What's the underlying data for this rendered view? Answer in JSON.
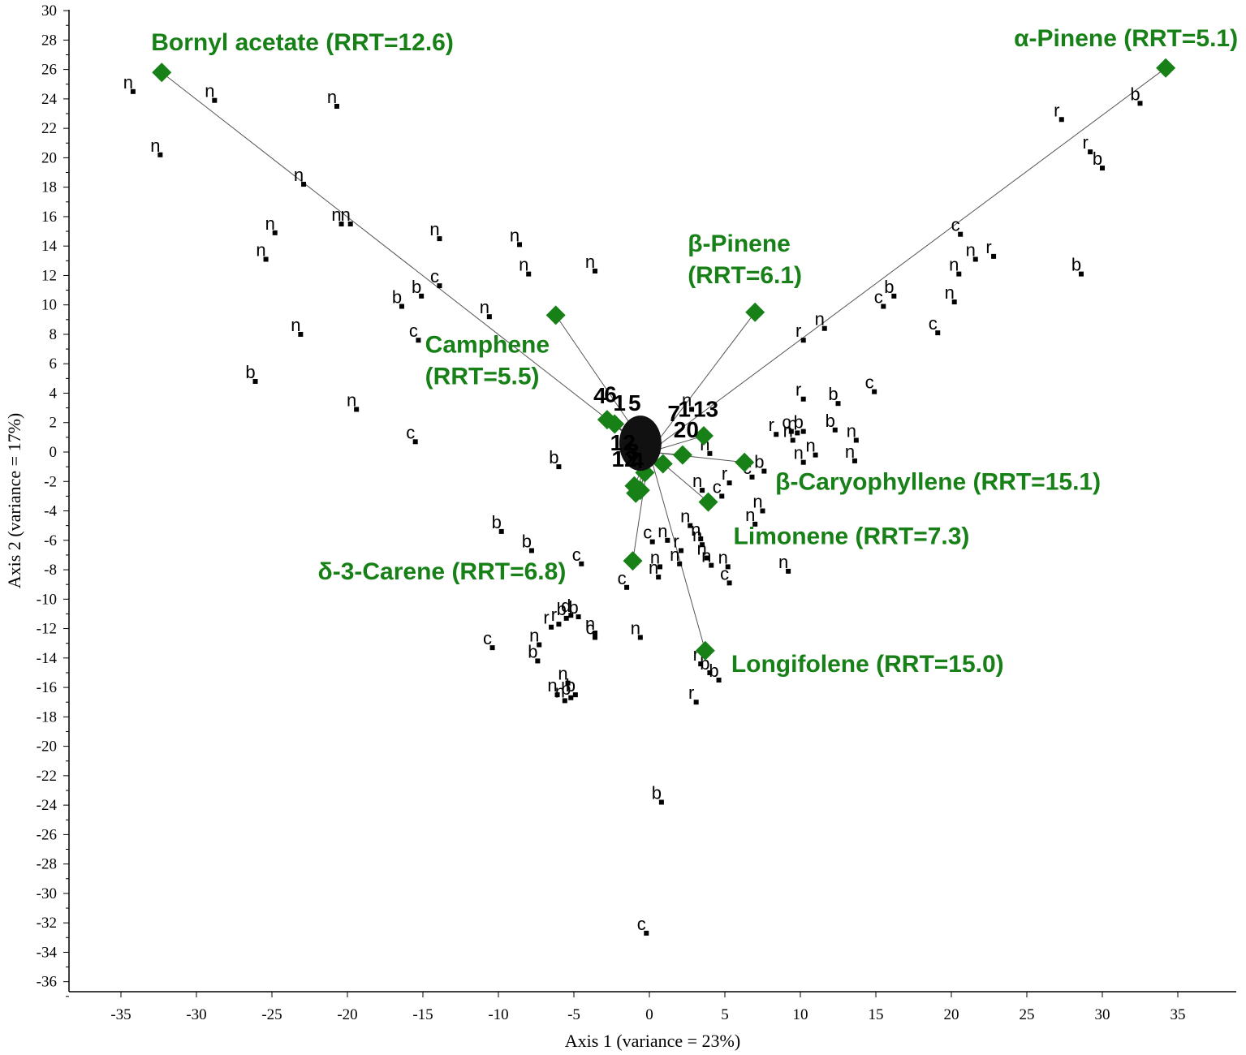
{
  "chart_data": {
    "type": "scatter",
    "title": "",
    "xlabel": "Axis 1 (variance = 23%)",
    "ylabel": "Axis 2 (variance = 17%)",
    "xlim": [
      -38,
      39
    ],
    "ylim": [
      -37,
      30
    ],
    "xticks": [
      -35,
      -30,
      -25,
      -20,
      -15,
      -10,
      -5,
      0,
      5,
      10,
      15,
      20,
      25,
      30,
      35
    ],
    "yticks": [
      30,
      28,
      26,
      24,
      22,
      20,
      18,
      16,
      14,
      12,
      10,
      8,
      6,
      4,
      2,
      0,
      -2,
      -4,
      -6,
      -8,
      -10,
      -12,
      -14,
      -16,
      -18,
      -20,
      -22,
      -24,
      -26,
      -28,
      -30,
      -32,
      -34,
      -36
    ],
    "grid": false,
    "colors": {
      "loading": "#178017",
      "points": "#000000"
    },
    "loadings": [
      {
        "name": "Bornyl acetate (RRT=12.6)",
        "x": -32.3,
        "y": 25.8,
        "label_lines": [
          "Bornyl acetate (RRT=12.6)"
        ]
      },
      {
        "name": "α-Pinene (RRT=5.1)",
        "x": 34.2,
        "y": 26.1,
        "label_lines": [
          "α-Pinene (RRT=5.1)"
        ]
      },
      {
        "name": "β-Pinene (RRT=6.1)",
        "x": 7.0,
        "y": 9.5,
        "label_lines": [
          "β-Pinene",
          "(RRT=6.1)"
        ]
      },
      {
        "name": "Camphene (RRT=5.5)",
        "x": -6.2,
        "y": 9.3,
        "label_lines": [
          "Camphene",
          "(RRT=5.5)"
        ]
      },
      {
        "name": "β-Caryophyllene (RRT=15.1)",
        "x": 6.3,
        "y": -0.7,
        "label_lines": [
          "β-Caryophyllene (RRT=15.1)"
        ]
      },
      {
        "name": "Limonene (RRT=7.3)",
        "x": 3.9,
        "y": -3.4,
        "label_lines": [
          "Limonene (RRT=7.3)"
        ]
      },
      {
        "name": "δ-3-Carene (RRT=6.8)",
        "x": -1.1,
        "y": -7.4,
        "label_lines": [
          "δ-3-Carene (RRT=6.8)"
        ]
      },
      {
        "name": "Longifolene (RRT=15.0)",
        "x": 3.7,
        "y": -13.5,
        "label_lines": [
          "Longifolene (RRT=15.0)"
        ]
      }
    ],
    "center_loadings": [
      {
        "x": -2.8,
        "y": 2.2
      },
      {
        "x": -2.3,
        "y": 1.9
      },
      {
        "x": 3.6,
        "y": 1.1
      },
      {
        "x": 2.2,
        "y": -0.2
      },
      {
        "x": 0.9,
        "y": -0.8
      },
      {
        "x": -1.0,
        "y": -2.3
      },
      {
        "x": -0.6,
        "y": -2.6
      },
      {
        "x": -0.9,
        "y": -2.8
      },
      {
        "x": 0.2,
        "y": 0.6
      },
      {
        "x": -0.3,
        "y": -1.4
      }
    ],
    "center_labels": [
      {
        "text": "4",
        "x": -3.7,
        "y": 3.3
      },
      {
        "text": "6",
        "x": -3.0,
        "y": 3.4
      },
      {
        "text": "1",
        "x": -2.4,
        "y": 2.8
      },
      {
        "text": "5",
        "x": -1.4,
        "y": 2.8
      },
      {
        "text": "1",
        "x": 1.9,
        "y": 2.4
      },
      {
        "text": "13",
        "x": 2.9,
        "y": 2.4
      },
      {
        "text": "7",
        "x": 1.2,
        "y": 2.1
      },
      {
        "text": "20",
        "x": 1.6,
        "y": 1.0
      },
      {
        "text": "12",
        "x": -2.6,
        "y": 0.1
      },
      {
        "text": "3",
        "x": -1.5,
        "y": -0.5
      },
      {
        "text": "12",
        "x": -2.5,
        "y": -1.0
      },
      {
        "text": "4",
        "x": -1.2,
        "y": -1.1
      }
    ],
    "points": [
      {
        "label": "n",
        "x": -34.2,
        "y": 24.5
      },
      {
        "label": "n",
        "x": -28.8,
        "y": 23.9
      },
      {
        "label": "n",
        "x": -20.7,
        "y": 23.5
      },
      {
        "label": "n",
        "x": -32.4,
        "y": 20.2
      },
      {
        "label": "n",
        "x": -22.9,
        "y": 18.2
      },
      {
        "label": "n",
        "x": -20.4,
        "y": 15.5
      },
      {
        "label": "n",
        "x": -19.8,
        "y": 15.5
      },
      {
        "label": "n",
        "x": -24.8,
        "y": 14.9
      },
      {
        "label": "n",
        "x": -13.9,
        "y": 14.5
      },
      {
        "label": "n",
        "x": -8.6,
        "y": 14.1
      },
      {
        "label": "n",
        "x": -25.4,
        "y": 13.1
      },
      {
        "label": "n",
        "x": -8.0,
        "y": 12.1
      },
      {
        "label": "n",
        "x": -3.6,
        "y": 12.3
      },
      {
        "label": "c",
        "x": -13.9,
        "y": 11.3
      },
      {
        "label": "b",
        "x": -15.1,
        "y": 10.6
      },
      {
        "label": "b",
        "x": -16.4,
        "y": 9.9
      },
      {
        "label": "n",
        "x": -10.6,
        "y": 9.2
      },
      {
        "label": "n",
        "x": -23.1,
        "y": 8.0
      },
      {
        "label": "c",
        "x": -15.3,
        "y": 7.6
      },
      {
        "label": "b",
        "x": -26.1,
        "y": 4.8
      },
      {
        "label": "n",
        "x": -19.4,
        "y": 2.9
      },
      {
        "label": "c",
        "x": -15.5,
        "y": 0.7
      },
      {
        "label": "b",
        "x": -6.0,
        "y": -1.0
      },
      {
        "label": "b",
        "x": -9.8,
        "y": -5.4
      },
      {
        "label": "b",
        "x": -7.8,
        "y": -6.7
      },
      {
        "label": "c",
        "x": -4.5,
        "y": -7.6
      },
      {
        "label": "c",
        "x": -1.5,
        "y": -9.2
      },
      {
        "label": "c",
        "x": -10.4,
        "y": -13.3
      },
      {
        "label": "n",
        "x": -7.3,
        "y": -13.1
      },
      {
        "label": "b",
        "x": -7.4,
        "y": -14.2
      },
      {
        "label": "r",
        "x": -6.5,
        "y": -11.9
      },
      {
        "label": "r",
        "x": -6.0,
        "y": -11.7
      },
      {
        "label": "b",
        "x": -5.5,
        "y": -11.3
      },
      {
        "label": "d",
        "x": -5.2,
        "y": -11.1
      },
      {
        "label": "b",
        "x": -4.7,
        "y": -11.2
      },
      {
        "label": "n",
        "x": -3.6,
        "y": -12.3
      },
      {
        "label": "c",
        "x": -3.6,
        "y": -12.6
      },
      {
        "label": "n",
        "x": -0.6,
        "y": -12.6
      },
      {
        "label": "n",
        "x": -5.4,
        "y": -15.7
      },
      {
        "label": "n",
        "x": -6.1,
        "y": -16.5
      },
      {
        "label": "n",
        "x": -5.6,
        "y": -16.9
      },
      {
        "label": "b",
        "x": -4.9,
        "y": -16.5
      },
      {
        "label": "b",
        "x": -5.2,
        "y": -16.7
      },
      {
        "label": "b",
        "x": 0.8,
        "y": -23.8
      },
      {
        "label": "c",
        "x": -0.2,
        "y": -32.7
      },
      {
        "label": "n",
        "x": 2.8,
        "y": 2.9
      },
      {
        "label": "n",
        "x": 4.0,
        "y": -0.1
      },
      {
        "label": "n",
        "x": 3.5,
        "y": -2.6
      },
      {
        "label": "c",
        "x": 4.8,
        "y": -3.0
      },
      {
        "label": "r",
        "x": 5.3,
        "y": -2.1
      },
      {
        "label": "c",
        "x": 6.8,
        "y": -1.7
      },
      {
        "label": "b",
        "x": 7.6,
        "y": -1.3
      },
      {
        "label": "n",
        "x": 7.5,
        "y": -4.0
      },
      {
        "label": "n",
        "x": 7.0,
        "y": -4.9
      },
      {
        "label": "n",
        "x": 2.7,
        "y": -5.0
      },
      {
        "label": "n",
        "x": 1.2,
        "y": -6.0
      },
      {
        "label": "c",
        "x": 0.2,
        "y": -6.1
      },
      {
        "label": "n",
        "x": 3.4,
        "y": -5.9
      },
      {
        "label": "n",
        "x": 3.5,
        "y": -6.3
      },
      {
        "label": "r",
        "x": 2.1,
        "y": -6.7
      },
      {
        "label": "n",
        "x": 0.7,
        "y": -7.8
      },
      {
        "label": "n",
        "x": 0.6,
        "y": -8.5
      },
      {
        "label": "n",
        "x": 2.0,
        "y": -7.6
      },
      {
        "label": "n",
        "x": 3.8,
        "y": -7.2
      },
      {
        "label": "n",
        "x": 4.1,
        "y": -7.7
      },
      {
        "label": "n",
        "x": 5.2,
        "y": -7.8
      },
      {
        "label": "c",
        "x": 5.3,
        "y": -8.9
      },
      {
        "label": "n",
        "x": 9.2,
        "y": -8.1
      },
      {
        "label": "r",
        "x": 3.4,
        "y": -14.4
      },
      {
        "label": "b",
        "x": 4.0,
        "y": -15.0
      },
      {
        "label": "b",
        "x": 4.6,
        "y": -15.5
      },
      {
        "label": "r",
        "x": 3.1,
        "y": -17.0
      },
      {
        "label": "r",
        "x": 10.2,
        "y": 3.6
      },
      {
        "label": "b",
        "x": 12.5,
        "y": 3.3
      },
      {
        "label": "c",
        "x": 14.9,
        "y": 4.1
      },
      {
        "label": "r",
        "x": 8.4,
        "y": 1.2
      },
      {
        "label": "c",
        "x": 9.4,
        "y": 1.4
      },
      {
        "label": "n",
        "x": 9.8,
        "y": 1.3
      },
      {
        "label": "b",
        "x": 10.2,
        "y": 1.4
      },
      {
        "label": "b",
        "x": 12.3,
        "y": 1.5
      },
      {
        "label": "n",
        "x": 13.7,
        "y": 0.8
      },
      {
        "label": "n",
        "x": 9.5,
        "y": 0.8
      },
      {
        "label": "n",
        "x": 10.2,
        "y": -0.7
      },
      {
        "label": "n",
        "x": 11.0,
        "y": -0.2
      },
      {
        "label": "n",
        "x": 13.6,
        "y": -0.6
      },
      {
        "label": "r",
        "x": 10.2,
        "y": 7.6
      },
      {
        "label": "n",
        "x": 11.6,
        "y": 8.4
      },
      {
        "label": "c",
        "x": 15.5,
        "y": 9.9
      },
      {
        "label": "b",
        "x": 16.2,
        "y": 10.6
      },
      {
        "label": "c",
        "x": 19.1,
        "y": 8.1
      },
      {
        "label": "n",
        "x": 20.2,
        "y": 10.2
      },
      {
        "label": "n",
        "x": 20.5,
        "y": 12.1
      },
      {
        "label": "n",
        "x": 21.6,
        "y": 13.1
      },
      {
        "label": "r",
        "x": 22.8,
        "y": 13.3
      },
      {
        "label": "c",
        "x": 20.6,
        "y": 14.8
      },
      {
        "label": "b",
        "x": 28.6,
        "y": 12.1
      },
      {
        "label": "r",
        "x": 27.3,
        "y": 22.6
      },
      {
        "label": "r",
        "x": 29.2,
        "y": 20.4
      },
      {
        "label": "b",
        "x": 30.0,
        "y": 19.3
      },
      {
        "label": "b",
        "x": 32.5,
        "y": 23.7
      }
    ]
  }
}
